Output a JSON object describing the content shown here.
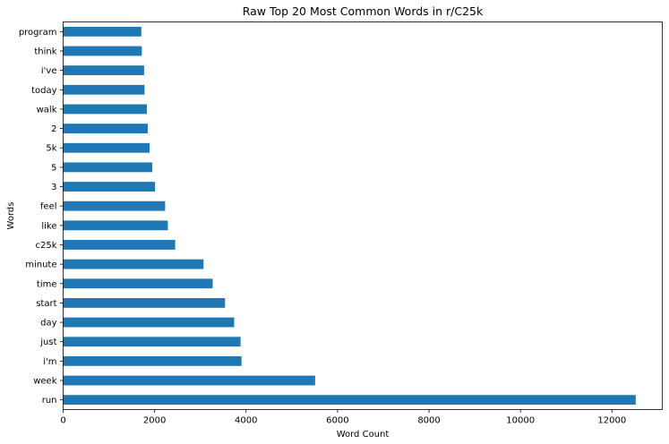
{
  "chart_data": {
    "type": "bar",
    "orientation": "horizontal",
    "title": "Raw Top 20 Most Common Words in r/C25k",
    "xlabel": "Word Count",
    "ylabel": "Words",
    "xlim": [
      0,
      13100
    ],
    "xticks": [
      0,
      2000,
      4000,
      6000,
      8000,
      10000,
      12000
    ],
    "categories": [
      "run",
      "week",
      "i'm",
      "just",
      "day",
      "start",
      "time",
      "minute",
      "c25k",
      "like",
      "feel",
      "3",
      "5",
      "5k",
      "2",
      "walk",
      "today",
      "i've",
      "think",
      "program"
    ],
    "values": [
      12520,
      5510,
      3900,
      3880,
      3740,
      3540,
      3270,
      3070,
      2450,
      2290,
      2230,
      2010,
      1950,
      1890,
      1850,
      1830,
      1780,
      1770,
      1720,
      1710
    ],
    "bar_color": "#1f77b4",
    "grid": false,
    "legend": false
  }
}
